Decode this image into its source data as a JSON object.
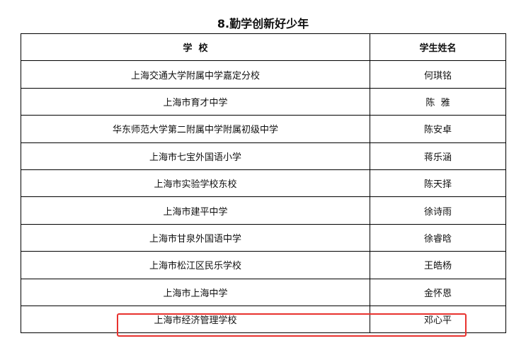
{
  "title": "8.勤学创新好少年",
  "headers": {
    "school": "学  校",
    "name": "学生姓名"
  },
  "rows": [
    {
      "school": "上海交通大学附属中学嘉定分校",
      "name": "何琪铭"
    },
    {
      "school": "上海市育才中学",
      "name": "陈  雅"
    },
    {
      "school": "华东师范大学第二附属中学附属初级中学",
      "name": "陈安卓"
    },
    {
      "school": "上海市七宝外国语小学",
      "name": "蒋乐涵"
    },
    {
      "school": "上海市实验学校东校",
      "name": "陈天择"
    },
    {
      "school": "上海市建平中学",
      "name": "徐诗雨"
    },
    {
      "school": "上海市甘泉外国语中学",
      "name": "徐睿晗"
    },
    {
      "school": "上海市松江区民乐学校",
      "name": "王皓杨"
    },
    {
      "school": "上海市上海中学",
      "name": "金怀恩"
    },
    {
      "school": "上海市经济管理学校",
      "name": "邓心平"
    }
  ],
  "highlight_color": "#e8322e"
}
